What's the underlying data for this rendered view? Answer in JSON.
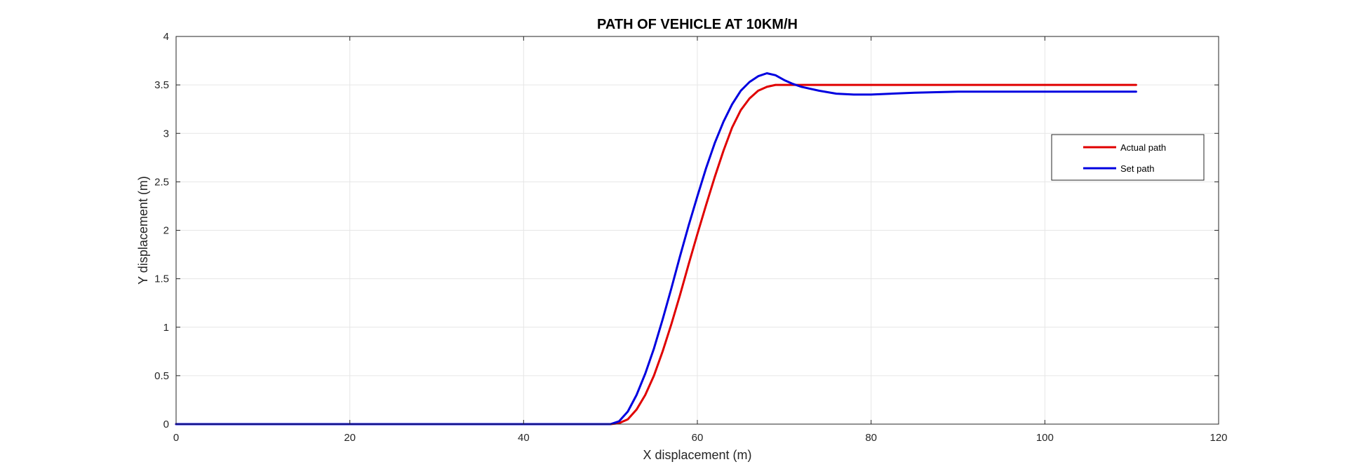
{
  "chart_data": {
    "type": "line",
    "title": "PATH OF VEHICLE AT 10KM/H",
    "xlabel": "X displacement (m)",
    "ylabel": "Y displacement (m)",
    "xlim": [
      0,
      120
    ],
    "ylim": [
      0,
      4
    ],
    "xticks": [
      0,
      20,
      40,
      60,
      80,
      100,
      120
    ],
    "yticks": [
      0,
      0.5,
      1,
      1.5,
      2,
      2.5,
      3,
      3.5,
      4
    ],
    "xtick_labels": [
      "0",
      "20",
      "40",
      "60",
      "80",
      "100",
      "120"
    ],
    "ytick_labels": [
      "0",
      "0.5",
      "1",
      "1.5",
      "2",
      "2.5",
      "3",
      "3.5",
      "4"
    ],
    "grid": true,
    "legend_position": "right",
    "series": [
      {
        "name": "Actual path",
        "color": "#e00000",
        "x": [
          0,
          50,
          51,
          52,
          53,
          54,
          55,
          56,
          57,
          58,
          59,
          60,
          61,
          62,
          63,
          64,
          65,
          66,
          67,
          68,
          69,
          70,
          71,
          72,
          75,
          80,
          90,
          100,
          110.5
        ],
        "y": [
          0,
          0,
          0.01,
          0.05,
          0.15,
          0.3,
          0.5,
          0.75,
          1.03,
          1.33,
          1.65,
          1.96,
          2.26,
          2.55,
          2.82,
          3.06,
          3.24,
          3.36,
          3.44,
          3.48,
          3.5,
          3.5,
          3.5,
          3.5,
          3.5,
          3.5,
          3.5,
          3.5,
          3.5
        ]
      },
      {
        "name": "Set path",
        "color": "#0000e0",
        "x": [
          0,
          50,
          51,
          52,
          53,
          54,
          55,
          56,
          57,
          58,
          59,
          60,
          61,
          62,
          63,
          64,
          65,
          66,
          67,
          68,
          69,
          70,
          71,
          72,
          74,
          76,
          78,
          80,
          85,
          90,
          95,
          100,
          105,
          110.5
        ],
        "y": [
          0,
          0,
          0.03,
          0.13,
          0.3,
          0.52,
          0.78,
          1.08,
          1.4,
          1.73,
          2.05,
          2.35,
          2.64,
          2.9,
          3.12,
          3.3,
          3.44,
          3.53,
          3.59,
          3.62,
          3.6,
          3.55,
          3.51,
          3.48,
          3.44,
          3.41,
          3.4,
          3.4,
          3.42,
          3.43,
          3.43,
          3.43,
          3.43,
          3.43
        ]
      }
    ]
  }
}
